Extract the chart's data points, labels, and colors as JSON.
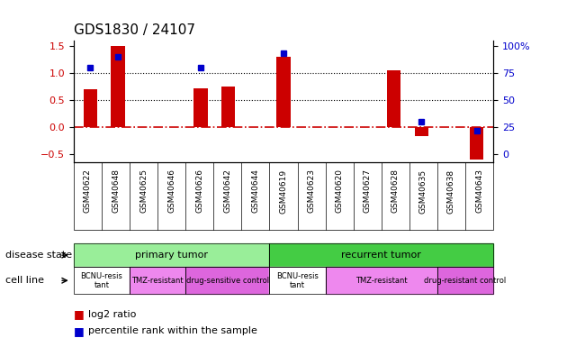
{
  "title": "GDS1830 / 24107",
  "samples": [
    "GSM40622",
    "GSM40648",
    "GSM40625",
    "GSM40646",
    "GSM40626",
    "GSM40642",
    "GSM40644",
    "GSM40619",
    "GSM40623",
    "GSM40620",
    "GSM40627",
    "GSM40628",
    "GSM40635",
    "GSM40638",
    "GSM40643"
  ],
  "log2_ratio": [
    0.7,
    1.5,
    0.0,
    0.0,
    0.72,
    0.75,
    0.0,
    1.3,
    0.0,
    0.0,
    0.0,
    1.05,
    -0.17,
    0.0,
    -0.6
  ],
  "percentile_rank": [
    80,
    90,
    null,
    null,
    80,
    null,
    null,
    93,
    null,
    null,
    null,
    null,
    30,
    null,
    22
  ],
  "percentile_scale": 1.5,
  "bar_color": "#cc0000",
  "dot_color": "#0000cc",
  "ylim": [
    -0.65,
    1.6
  ],
  "yticks_left": [
    -0.5,
    0.0,
    0.5,
    1.0,
    1.5
  ],
  "yticks_right": [
    0,
    25,
    50,
    75,
    100
  ],
  "hline_0_color": "#cc0000",
  "hline_dotted_vals": [
    0.5,
    1.0
  ],
  "disease_state_groups": [
    {
      "label": "primary tumor",
      "start": 0,
      "end": 6,
      "color": "#99ee99"
    },
    {
      "label": "recurrent tumor",
      "start": 7,
      "end": 14,
      "color": "#44cc44"
    }
  ],
  "cell_line_groups": [
    {
      "label": "BCNU-resis\ntant",
      "start": 0,
      "end": 1,
      "color": "#ffffff"
    },
    {
      "label": "TMZ-resistant",
      "start": 2,
      "end": 3,
      "color": "#ee88ee"
    },
    {
      "label": "drug-sensitive control",
      "start": 4,
      "end": 6,
      "color": "#dd66dd"
    },
    {
      "label": "BCNU-resis\ntant",
      "start": 7,
      "end": 8,
      "color": "#ffffff"
    },
    {
      "label": "TMZ-resistant",
      "start": 9,
      "end": 12,
      "color": "#ee88ee"
    },
    {
      "label": "drug-resistant control",
      "start": 13,
      "end": 14,
      "color": "#dd66dd"
    }
  ],
  "row_labels": [
    "disease state",
    "cell line"
  ],
  "legend_items": [
    {
      "label": "log2 ratio",
      "color": "#cc0000"
    },
    {
      "label": "percentile rank within the sample",
      "color": "#0000cc"
    }
  ]
}
